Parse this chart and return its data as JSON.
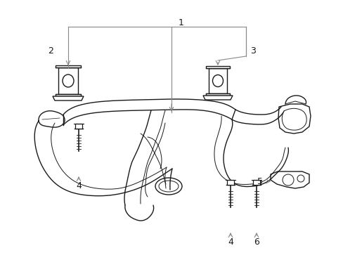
{
  "bg_color": "#ffffff",
  "line_color": "#1a1a1a",
  "gray_color": "#888888",
  "figsize": [
    4.89,
    3.6
  ],
  "dpi": 100
}
